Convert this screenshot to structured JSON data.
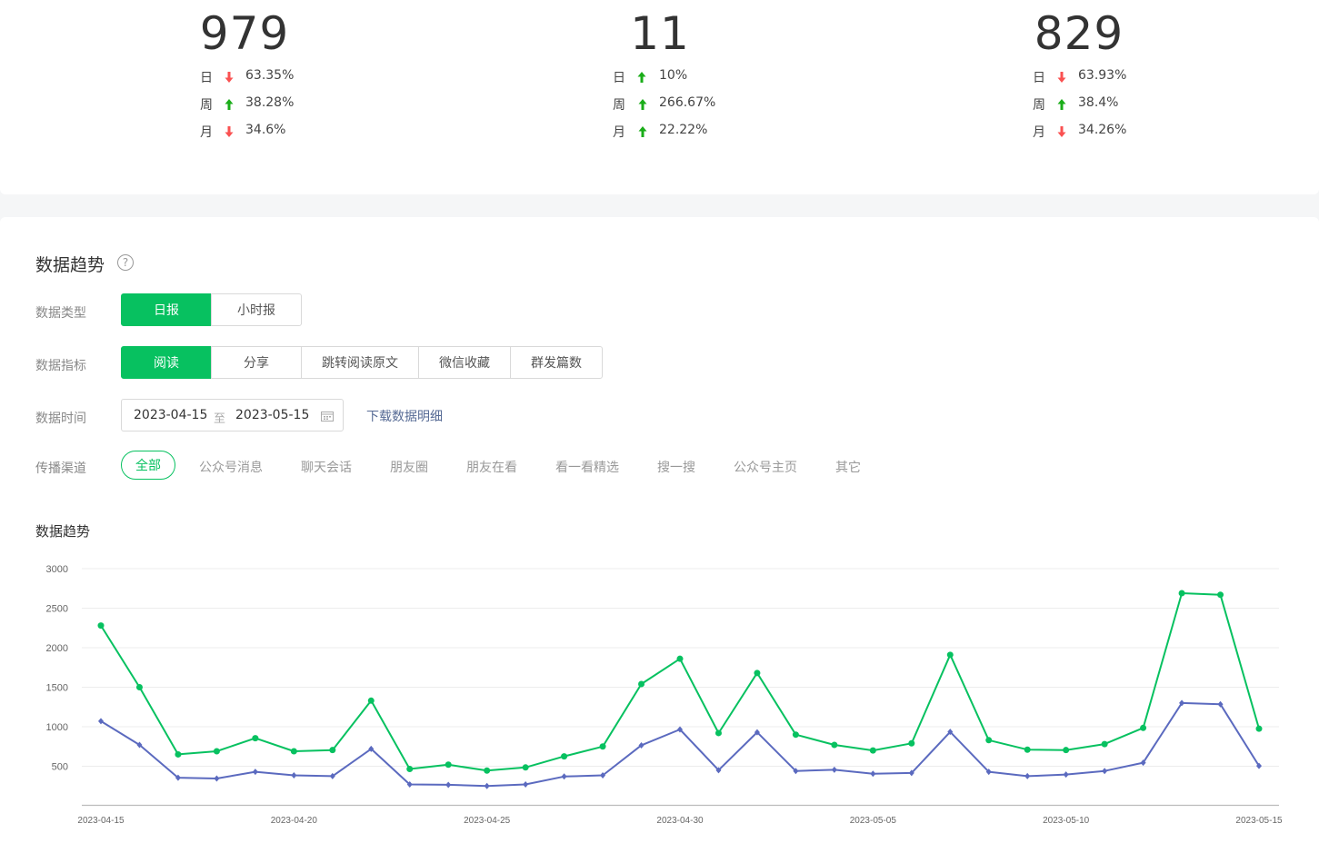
{
  "stats": [
    {
      "value": "979",
      "day": {
        "label": "日",
        "dir": "down",
        "pct": "63.35%"
      },
      "week": {
        "label": "周",
        "dir": "up",
        "pct": "38.28%"
      },
      "month": {
        "label": "月",
        "dir": "down",
        "pct": "34.6%"
      }
    },
    {
      "value": "11",
      "day": {
        "label": "日",
        "dir": "up",
        "pct": "10%"
      },
      "week": {
        "label": "周",
        "dir": "up",
        "pct": "266.67%"
      },
      "month": {
        "label": "月",
        "dir": "up",
        "pct": "22.22%"
      }
    },
    {
      "value": "829",
      "day": {
        "label": "日",
        "dir": "down",
        "pct": "63.93%"
      },
      "week": {
        "label": "周",
        "dir": "up",
        "pct": "38.4%"
      },
      "month": {
        "label": "月",
        "dir": "down",
        "pct": "34.26%"
      }
    }
  ],
  "colors": {
    "up": "#1aad19",
    "down": "#fa5151",
    "accent": "#07c160",
    "series2": "#5b6abf"
  },
  "trend": {
    "title": "数据趋势",
    "help_icon": "question-circle-icon",
    "type_label": "数据类型",
    "types": [
      "日报",
      "小时报"
    ],
    "type_selected": "日报",
    "metric_label": "数据指标",
    "metrics": [
      "阅读",
      "分享",
      "跳转阅读原文",
      "微信收藏",
      "群发篇数"
    ],
    "metric_selected": "阅读",
    "time_label": "数据时间",
    "date_start": "2023-04-15",
    "date_sep": "至",
    "date_end": "2023-05-15",
    "calendar_icon": "calendar-icon",
    "download": "下载数据明细",
    "channel_label": "传播渠道",
    "channels": [
      "全部",
      "公众号消息",
      "聊天会话",
      "朋友圈",
      "朋友在看",
      "看一看精选",
      "搜一搜",
      "公众号主页",
      "其它"
    ],
    "channel_selected": "全部"
  },
  "chart_title": "数据趋势",
  "chart_data": {
    "type": "line",
    "x": [
      "2023-04-15",
      "2023-04-16",
      "2023-04-17",
      "2023-04-18",
      "2023-04-19",
      "2023-04-20",
      "2023-04-21",
      "2023-04-22",
      "2023-04-23",
      "2023-04-24",
      "2023-04-25",
      "2023-04-26",
      "2023-04-27",
      "2023-04-28",
      "2023-04-29",
      "2023-04-30",
      "2023-05-01",
      "2023-05-02",
      "2023-05-03",
      "2023-05-04",
      "2023-05-05",
      "2023-05-06",
      "2023-05-07",
      "2023-05-08",
      "2023-05-09",
      "2023-05-10",
      "2023-05-11",
      "2023-05-12",
      "2023-05-13",
      "2023-05-14",
      "2023-05-15"
    ],
    "x_ticks": [
      "2023-04-15",
      "2023-04-20",
      "2023-04-25",
      "2023-04-30",
      "2023-05-05",
      "2023-05-10",
      "2023-05-15"
    ],
    "y_ticks": [
      500,
      1000,
      1500,
      2000,
      2500,
      3000
    ],
    "ylim": [
      0,
      3000
    ],
    "grid": true,
    "series": [
      {
        "color": "#07c160",
        "marker": "circle",
        "values": [
          2280,
          1500,
          650,
          690,
          855,
          690,
          705,
          1330,
          465,
          520,
          445,
          485,
          625,
          750,
          1540,
          1860,
          920,
          1680,
          900,
          770,
          700,
          790,
          1910,
          830,
          710,
          705,
          780,
          985,
          2690,
          2670,
          975
        ]
      },
      {
        "color": "#5b6abf",
        "marker": "diamond",
        "values": [
          1070,
          770,
          355,
          345,
          430,
          385,
          375,
          720,
          270,
          265,
          250,
          270,
          370,
          385,
          765,
          965,
          450,
          930,
          440,
          455,
          405,
          415,
          935,
          430,
          375,
          395,
          440,
          545,
          1300,
          1285,
          505
        ]
      }
    ]
  }
}
